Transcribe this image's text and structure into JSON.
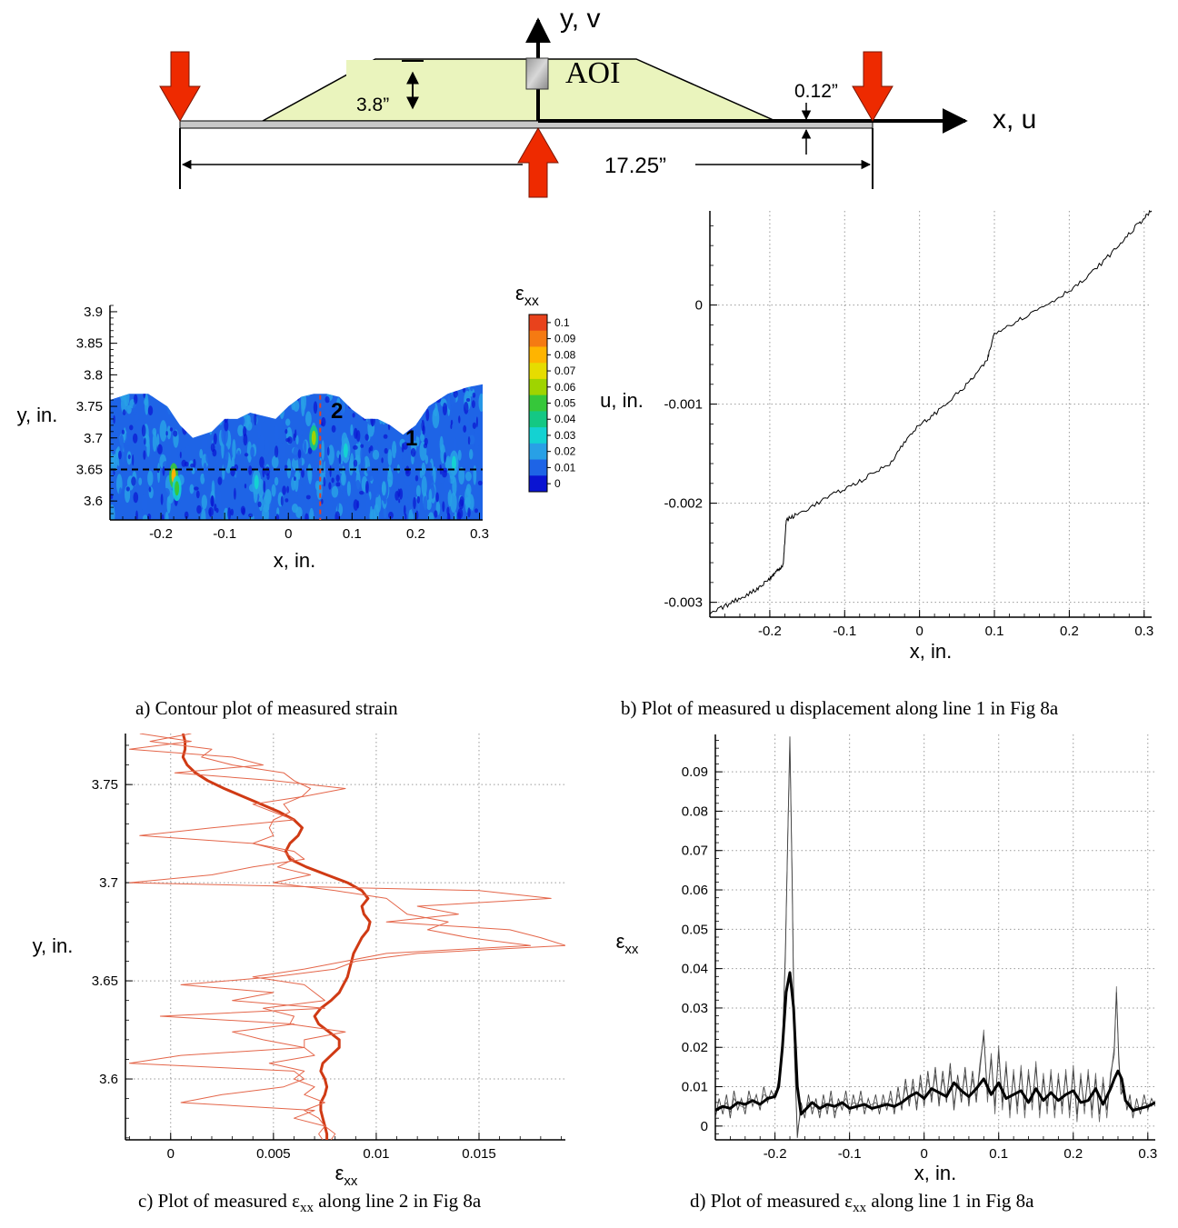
{
  "schematic": {
    "y_axis_label": "y, v",
    "x_axis_label": "x, u",
    "aoi_label": "AOI",
    "height_label": "3.8”",
    "thickness_label": "0.12”",
    "span_label": "17.25”"
  },
  "colorbar": {
    "title": "ε",
    "title_sub": "xx",
    "ticks": [
      "0.1",
      "0.09",
      "0.08",
      "0.07",
      "0.06",
      "0.05",
      "0.04",
      "0.03",
      "0.02",
      "0.01",
      "0"
    ],
    "colors": [
      "#e8421c",
      "#f57a12",
      "#ffb400",
      "#e6dc00",
      "#9fd400",
      "#36c73a",
      "#14c884",
      "#14d2d2",
      "#28a0e6",
      "#1e64e6",
      "#0a14d2"
    ]
  },
  "panel_a": {
    "line1_label": "1",
    "line2_label": "2"
  },
  "captions": {
    "a": "a)  Contour plot of measured strain",
    "b": "b)  Plot of measured u displacement along line 1 in Fig 8a",
    "c_pre": "c)  Plot of measured ε",
    "c_sub": "xx",
    "c_post": " along line 2 in Fig 8a",
    "d_pre": "d)  Plot of measured ε",
    "d_sub": "xx",
    "d_post": " along line 1 in Fig 8a"
  },
  "chart_data": [
    {
      "id": "a",
      "type": "heatmap",
      "xlabel": "x, in.",
      "ylabel": "y, in.",
      "xlim": [
        -0.28,
        0.305
      ],
      "ylim": [
        3.57,
        3.91
      ],
      "xticks": [
        -0.2,
        -0.1,
        0,
        0.1,
        0.2,
        0.3
      ],
      "yticks": [
        3.6,
        3.65,
        3.7,
        3.75,
        3.8,
        3.85,
        3.9
      ],
      "zlim": [
        0,
        0.1
      ],
      "line1_y": 3.65,
      "line2_x": 0.05,
      "top_edge": [
        [
          -0.28,
          3.76
        ],
        [
          -0.25,
          3.77
        ],
        [
          -0.22,
          3.77
        ],
        [
          -0.19,
          3.75
        ],
        [
          -0.17,
          3.72
        ],
        [
          -0.15,
          3.7
        ],
        [
          -0.12,
          3.71
        ],
        [
          -0.1,
          3.73
        ],
        [
          -0.08,
          3.73
        ],
        [
          -0.06,
          3.74
        ],
        [
          -0.04,
          3.735
        ],
        [
          -0.02,
          3.73
        ],
        [
          0.0,
          3.75
        ],
        [
          0.02,
          3.765
        ],
        [
          0.04,
          3.77
        ],
        [
          0.06,
          3.77
        ],
        [
          0.08,
          3.765
        ],
        [
          0.1,
          3.745
        ],
        [
          0.12,
          3.73
        ],
        [
          0.14,
          3.73
        ],
        [
          0.16,
          3.72
        ],
        [
          0.18,
          3.705
        ],
        [
          0.2,
          3.72
        ],
        [
          0.22,
          3.75
        ],
        [
          0.25,
          3.77
        ],
        [
          0.28,
          3.78
        ],
        [
          0.305,
          3.785
        ]
      ],
      "hot_spots": [
        {
          "x": -0.18,
          "y": 3.64,
          "value": 0.08
        },
        {
          "x": -0.175,
          "y": 3.62,
          "value": 0.05
        },
        {
          "x": 0.04,
          "y": 3.7,
          "value": 0.06
        },
        {
          "x": 0.26,
          "y": 3.66,
          "value": 0.03
        },
        {
          "x": 0.09,
          "y": 3.68,
          "value": 0.025
        },
        {
          "x": -0.05,
          "y": 3.63,
          "value": 0.025
        },
        {
          "x": 0.15,
          "y": 3.62,
          "value": 0.02
        }
      ]
    },
    {
      "id": "b",
      "type": "line",
      "xlabel": "x, in.",
      "ylabel": "u, in.",
      "xlim": [
        -0.28,
        0.31
      ],
      "ylim": [
        -0.00315,
        0.00095
      ],
      "xticks": [
        -0.2,
        -0.1,
        0,
        0.1,
        0.2,
        0.3
      ],
      "yticks": [
        -0.003,
        -0.002,
        -0.001,
        0
      ],
      "ytick_labels": [
        "-0.003",
        "-0.002",
        "-0.001",
        "0"
      ],
      "grid": true,
      "series": [
        {
          "x": [
            -0.28,
            -0.25,
            -0.22,
            -0.2,
            -0.19,
            -0.182,
            -0.178,
            -0.16,
            -0.12,
            -0.08,
            -0.04,
            -0.01,
            0.02,
            0.06,
            0.09,
            0.1,
            0.14,
            0.18,
            0.22,
            0.26,
            0.29,
            0.31
          ],
          "y": [
            -0.00312,
            -0.003,
            -0.00288,
            -0.00276,
            -0.00268,
            -0.00262,
            -0.00217,
            -0.0021,
            -0.00193,
            -0.00178,
            -0.0016,
            -0.00128,
            -0.0011,
            -0.00083,
            -0.00057,
            -0.00028,
            -0.00012,
            5e-05,
            0.00025,
            0.00055,
            0.0008,
            0.00095
          ]
        }
      ]
    },
    {
      "id": "c",
      "type": "line",
      "xlabel": "ε",
      "xlabel_sub": "xx",
      "ylabel": "y, in.",
      "xlim": [
        -0.0022,
        0.0192
      ],
      "ylim": [
        3.569,
        3.776
      ],
      "xticks": [
        0,
        0.005,
        0.01,
        0.015
      ],
      "yticks": [
        3.6,
        3.65,
        3.7,
        3.75
      ],
      "grid": true,
      "series": [
        {
          "style": "thick",
          "y": [
            3.776,
            3.772,
            3.768,
            3.764,
            3.76,
            3.756,
            3.752,
            3.748,
            3.744,
            3.74,
            3.736,
            3.732,
            3.728,
            3.724,
            3.72,
            3.716,
            3.712,
            3.708,
            3.704,
            3.7,
            3.696,
            3.692,
            3.688,
            3.684,
            3.68,
            3.676,
            3.672,
            3.668,
            3.664,
            3.66,
            3.656,
            3.652,
            3.648,
            3.644,
            3.64,
            3.636,
            3.632,
            3.628,
            3.624,
            3.62,
            3.616,
            3.612,
            3.608,
            3.604,
            3.6,
            3.596,
            3.592,
            3.588,
            3.584,
            3.58,
            3.576,
            3.572,
            3.569
          ],
          "x": [
            0.0006,
            0.0007,
            0.0007,
            0.0006,
            0.0008,
            0.0012,
            0.0018,
            0.0026,
            0.0035,
            0.0044,
            0.0053,
            0.006,
            0.0064,
            0.0062,
            0.0058,
            0.0056,
            0.0058,
            0.0066,
            0.0076,
            0.0086,
            0.0093,
            0.0096,
            0.0093,
            0.0094,
            0.0097,
            0.0096,
            0.0093,
            0.0091,
            0.0089,
            0.0088,
            0.0087,
            0.0086,
            0.0084,
            0.0082,
            0.0078,
            0.0073,
            0.007,
            0.0072,
            0.0077,
            0.0082,
            0.0082,
            0.0078,
            0.0074,
            0.0073,
            0.0075,
            0.0076,
            0.0075,
            0.0073,
            0.0073,
            0.0074,
            0.0075,
            0.0076,
            0.0076
          ]
        },
        {
          "style": "thin",
          "y": [
            3.776,
            3.772,
            3.768,
            3.764,
            3.76,
            3.756,
            3.752,
            3.748,
            3.744,
            3.74,
            3.736,
            3.732,
            3.728,
            3.724,
            3.72,
            3.716,
            3.712,
            3.708,
            3.704,
            3.7,
            3.696,
            3.692,
            3.688,
            3.684,
            3.68,
            3.676,
            3.672,
            3.668,
            3.664,
            3.66,
            3.656,
            3.652,
            3.648,
            3.644,
            3.64,
            3.636,
            3.632,
            3.628,
            3.624,
            3.62,
            3.616,
            3.612,
            3.608,
            3.604,
            3.6,
            3.596,
            3.592,
            3.588,
            3.584,
            3.58,
            3.576,
            3.572,
            3.569
          ],
          "x": [
            -0.0015,
            0.001,
            -0.002,
            0.003,
            0.0045,
            0.0002,
            0.005,
            0.0085,
            0.0065,
            0.004,
            0.005,
            0.006,
            0.002,
            -0.0015,
            0.004,
            0.006,
            0.0065,
            0.004,
            0.002,
            -0.002,
            0.015,
            0.0185,
            0.012,
            0.014,
            0.0105,
            0.0165,
            0.018,
            0.0192,
            0.012,
            0.009,
            0.008,
            0.005,
            0.0005,
            0.005,
            0.003,
            0.0075,
            -0.0005,
            0.006,
            0.003,
            0.0045,
            0.0065,
            0.0005,
            -0.002,
            0.006,
            0.0065,
            0.0055,
            0.0025,
            0.0005,
            0.007,
            0.006,
            0.0075,
            0.008,
            0.0078
          ]
        },
        {
          "style": "thin",
          "y": [
            3.776,
            3.772,
            3.768,
            3.764,
            3.76,
            3.756,
            3.752,
            3.748,
            3.744,
            3.74,
            3.736,
            3.732,
            3.728,
            3.724,
            3.72,
            3.716,
            3.712,
            3.708,
            3.704,
            3.7,
            3.696,
            3.692,
            3.688,
            3.684,
            3.68,
            3.676,
            3.672,
            3.668,
            3.664,
            3.66,
            3.656,
            3.652,
            3.648,
            3.644,
            3.64,
            3.636,
            3.632,
            3.628,
            3.624,
            3.62,
            3.616,
            3.612,
            3.608,
            3.604,
            3.6,
            3.596,
            3.592,
            3.588,
            3.584,
            3.58,
            3.576,
            3.572,
            3.569
          ],
          "x": [
            0.001,
            -0.001,
            0.002,
            0.0015,
            0.003,
            0.0055,
            0.006,
            0.0068,
            0.0064,
            0.0055,
            0.0058,
            0.005,
            0.0048,
            0.005,
            0.004,
            0.0055,
            0.006,
            0.0052,
            0.0068,
            0.005,
            0.008,
            0.0105,
            0.011,
            0.0115,
            0.0135,
            0.0125,
            0.0145,
            0.0175,
            0.0105,
            0.0085,
            0.0065,
            0.004,
            0.0065,
            0.007,
            0.0075,
            0.0045,
            0.006,
            0.0058,
            0.0085,
            0.0065,
            0.0065,
            0.007,
            0.0048,
            0.0065,
            0.006,
            0.007,
            0.0065,
            0.0075,
            0.0065,
            0.0072,
            0.0075,
            0.0072,
            0.0074
          ]
        }
      ]
    },
    {
      "id": "d",
      "type": "line",
      "xlabel": "x, in.",
      "ylabel": "ε",
      "ylabel_sub": "xx",
      "xlim": [
        -0.28,
        0.31
      ],
      "ylim": [
        -0.0035,
        0.0995
      ],
      "xticks": [
        -0.2,
        -0.1,
        0,
        0.1,
        0.2,
        0.3
      ],
      "yticks": [
        0,
        0.01,
        0.02,
        0.03,
        0.04,
        0.05,
        0.06,
        0.07,
        0.08,
        0.09
      ],
      "grid": true,
      "series": [
        {
          "style": "thick",
          "x": [
            -0.28,
            -0.27,
            -0.26,
            -0.25,
            -0.24,
            -0.23,
            -0.22,
            -0.21,
            -0.2,
            -0.195,
            -0.19,
            -0.185,
            -0.18,
            -0.175,
            -0.17,
            -0.165,
            -0.16,
            -0.15,
            -0.14,
            -0.13,
            -0.12,
            -0.11,
            -0.1,
            -0.09,
            -0.08,
            -0.07,
            -0.06,
            -0.05,
            -0.04,
            -0.03,
            -0.02,
            -0.01,
            0,
            0.01,
            0.02,
            0.03,
            0.04,
            0.05,
            0.06,
            0.07,
            0.08,
            0.09,
            0.1,
            0.11,
            0.12,
            0.13,
            0.14,
            0.15,
            0.16,
            0.17,
            0.18,
            0.19,
            0.2,
            0.21,
            0.22,
            0.23,
            0.24,
            0.25,
            0.255,
            0.26,
            0.265,
            0.27,
            0.28,
            0.29,
            0.3,
            0.31
          ],
          "y": [
            0.004,
            0.005,
            0.0045,
            0.006,
            0.0055,
            0.0065,
            0.0055,
            0.007,
            0.0075,
            0.01,
            0.02,
            0.034,
            0.039,
            0.03,
            0.01,
            0.003,
            0.004,
            0.006,
            0.0045,
            0.0055,
            0.005,
            0.006,
            0.0045,
            0.005,
            0.0055,
            0.0045,
            0.005,
            0.0055,
            0.005,
            0.006,
            0.0075,
            0.0085,
            0.007,
            0.0095,
            0.0085,
            0.0075,
            0.011,
            0.009,
            0.0075,
            0.0095,
            0.012,
            0.008,
            0.011,
            0.007,
            0.008,
            0.009,
            0.006,
            0.0095,
            0.0065,
            0.0085,
            0.0065,
            0.008,
            0.009,
            0.006,
            0.0065,
            0.0095,
            0.0055,
            0.0095,
            0.012,
            0.014,
            0.012,
            0.0065,
            0.004,
            0.0045,
            0.005,
            0.006
          ]
        },
        {
          "style": "thin",
          "x": [
            -0.28,
            -0.275,
            -0.27,
            -0.265,
            -0.26,
            -0.255,
            -0.25,
            -0.245,
            -0.24,
            -0.235,
            -0.23,
            -0.225,
            -0.22,
            -0.215,
            -0.21,
            -0.205,
            -0.2,
            -0.195,
            -0.19,
            -0.186,
            -0.183,
            -0.18,
            -0.177,
            -0.174,
            -0.17,
            -0.165,
            -0.16,
            -0.155,
            -0.15,
            -0.145,
            -0.14,
            -0.135,
            -0.13,
            -0.125,
            -0.12,
            -0.115,
            -0.11,
            -0.105,
            -0.1,
            -0.095,
            -0.09,
            -0.085,
            -0.08,
            -0.075,
            -0.07,
            -0.065,
            -0.06,
            -0.055,
            -0.05,
            -0.045,
            -0.04,
            -0.035,
            -0.03,
            -0.025,
            -0.02,
            -0.015,
            -0.01,
            -0.005,
            0,
            0.005,
            0.01,
            0.015,
            0.02,
            0.025,
            0.03,
            0.035,
            0.04,
            0.045,
            0.05,
            0.055,
            0.06,
            0.065,
            0.07,
            0.075,
            0.08,
            0.085,
            0.09,
            0.095,
            0.1,
            0.105,
            0.11,
            0.115,
            0.12,
            0.125,
            0.13,
            0.135,
            0.14,
            0.145,
            0.15,
            0.155,
            0.16,
            0.165,
            0.17,
            0.175,
            0.18,
            0.185,
            0.19,
            0.195,
            0.2,
            0.205,
            0.21,
            0.215,
            0.22,
            0.225,
            0.23,
            0.235,
            0.24,
            0.245,
            0.25,
            0.255,
            0.258,
            0.261,
            0.264,
            0.268,
            0.272,
            0.276,
            0.28,
            0.285,
            0.29,
            0.295,
            0.3,
            0.305,
            0.31
          ],
          "y": [
            0.002,
            0.007,
            0.003,
            0.008,
            0.002,
            0.009,
            0.004,
            0.007,
            0.003,
            0.009,
            0.005,
            0.008,
            0.004,
            0.01,
            0.006,
            0.009,
            0.007,
            0.012,
            0.02,
            0.045,
            0.072,
            0.099,
            0.062,
            0.02,
            -0.003,
            0.006,
            0.002,
            0.008,
            0.003,
            0.007,
            0.002,
            0.008,
            0.003,
            0.009,
            0.002,
            0.007,
            0.004,
            0.009,
            0.003,
            0.008,
            0.004,
            0.009,
            0.003,
            0.007,
            0.004,
            0.008,
            0.003,
            0.008,
            0.004,
            0.009,
            0.003,
            0.01,
            0.004,
            0.012,
            0.005,
            0.012,
            0.004,
            0.013,
            0.005,
            0.014,
            0.006,
            0.015,
            0.005,
            0.014,
            0.006,
            0.016,
            0.004,
            0.013,
            0.006,
            0.015,
            0.005,
            0.014,
            0.006,
            0.016,
            0.023,
            0.008,
            0.017,
            0.005,
            0.019,
            0.006,
            0.015,
            0.004,
            0.013,
            0.005,
            0.014,
            0.004,
            0.013,
            0.006,
            0.015,
            0.004,
            0.012,
            0.005,
            0.013,
            0.004,
            0.012,
            0.005,
            0.013,
            0.004,
            0.014,
            0.003,
            0.012,
            0.005,
            0.013,
            0.004,
            0.012,
            0.003,
            0.011,
            0.004,
            0.012,
            0.02,
            0.034,
            0.018,
            0.008,
            0.01,
            0.004,
            0.008,
            0.002,
            0.007,
            0.003,
            0.008,
            0.004,
            0.007,
            0.005
          ]
        }
      ]
    }
  ]
}
